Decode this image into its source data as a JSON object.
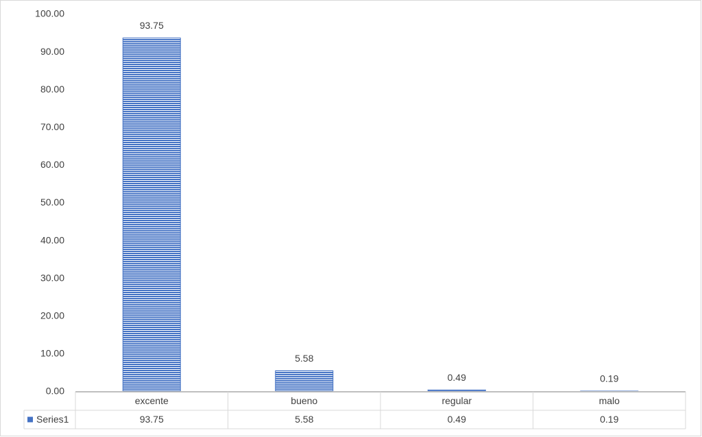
{
  "chart_data": {
    "type": "bar",
    "categories": [
      "excente",
      "bueno",
      "regular",
      "malo"
    ],
    "series": [
      {
        "name": "Series1",
        "color": "#4472c4",
        "values": [
          93.75,
          5.58,
          0.49,
          0.19
        ]
      }
    ],
    "ylim": [
      0,
      100
    ],
    "yticks": [
      {
        "value": 0,
        "label": "0.00"
      },
      {
        "value": 10,
        "label": "10.00"
      },
      {
        "value": 20,
        "label": "20.00"
      },
      {
        "value": 30,
        "label": "30.00"
      },
      {
        "value": 40,
        "label": "40.00"
      },
      {
        "value": 50,
        "label": "50.00"
      },
      {
        "value": 60,
        "label": "60.00"
      },
      {
        "value": 70,
        "label": "70.00"
      },
      {
        "value": 80,
        "label": "80.00"
      },
      {
        "value": 90,
        "label": "90.00"
      },
      {
        "value": 100,
        "label": "100.00"
      }
    ],
    "grid": false,
    "data_table": true
  }
}
